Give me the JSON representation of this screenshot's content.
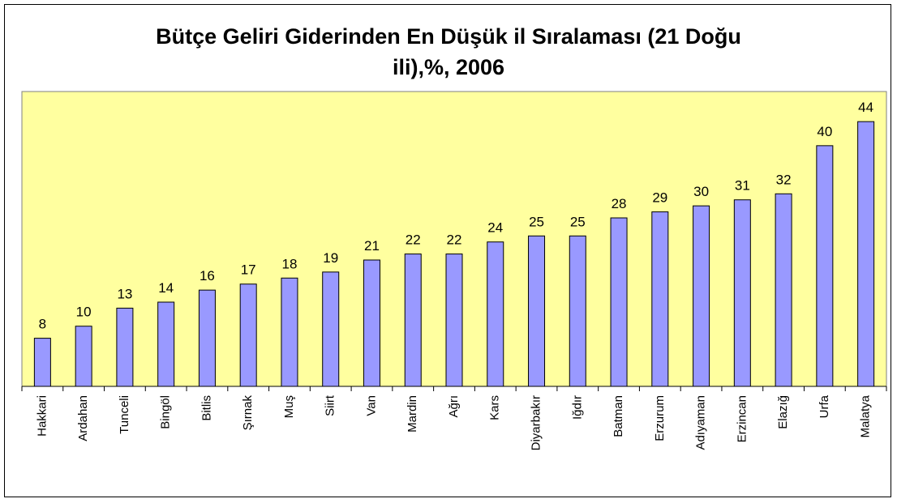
{
  "chart_data": {
    "type": "bar",
    "title": "Bütçe Geliri Giderinden En Düşük il Sıralaması (21 Doğu\nili),%, 2006",
    "categories": [
      "Hakkari",
      "Ardahan",
      "Tunceli",
      "Bingöl",
      "Bitlis",
      "Şırnak",
      "Muş",
      "Siirt",
      "Van",
      "Mardin",
      "Ağrı",
      "Kars",
      "Diyarbakır",
      "Iğdır",
      "Batman",
      "Erzurum",
      "Adıyaman",
      "Erzincan",
      "Elazığ",
      "Urfa",
      "Malatya"
    ],
    "values": [
      8,
      10,
      13,
      14,
      16,
      17,
      18,
      19,
      21,
      22,
      22,
      24,
      25,
      25,
      28,
      29,
      30,
      31,
      32,
      40,
      44
    ],
    "color": "#9999ff",
    "background": "#ffff9f",
    "ylim": [
      0,
      49
    ]
  }
}
